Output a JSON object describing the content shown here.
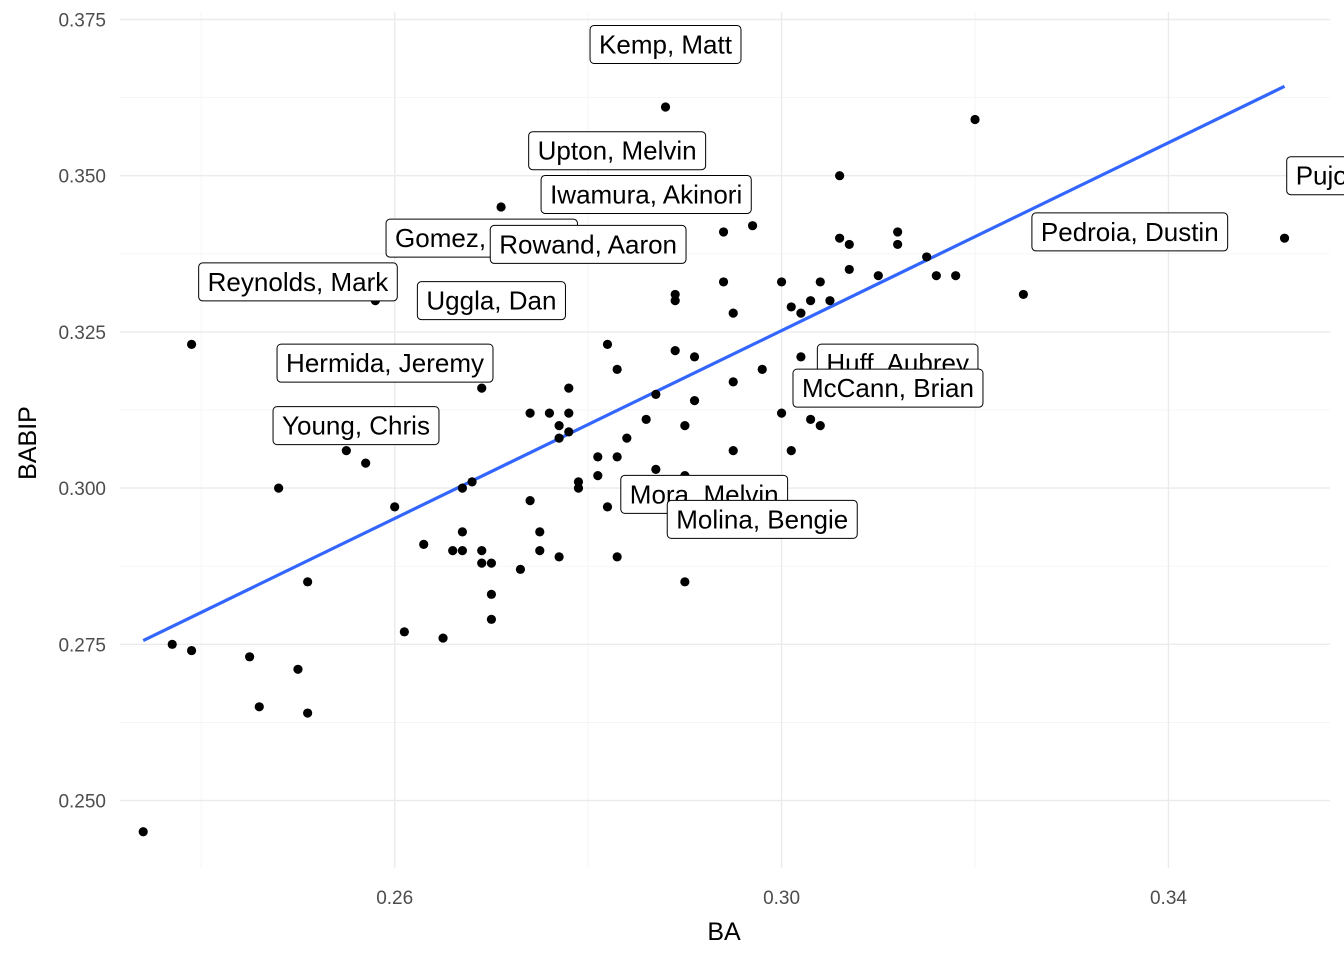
{
  "chart_data": {
    "type": "scatter",
    "title": "",
    "xlabel": "BA",
    "ylabel": "BABIP",
    "xlim": [
      0.2316,
      0.3567
    ],
    "ylim": [
      0.2392,
      0.3762
    ],
    "x_ticks": [
      0.26,
      0.3,
      0.34
    ],
    "x_tick_labels": [
      "0.26",
      "0.30",
      "0.34"
    ],
    "y_ticks": [
      0.25,
      0.275,
      0.3,
      0.325,
      0.35,
      0.375
    ],
    "y_tick_labels": [
      "0.250",
      "0.275",
      "0.300",
      "0.325",
      "0.350",
      "0.375"
    ],
    "grid": true,
    "legend": "none",
    "colors": {
      "points": "#000000",
      "fit_line": "#3366ff",
      "grid": "#ebebeb"
    },
    "points": [
      [
        0.234,
        0.245
      ],
      [
        0.237,
        0.275
      ],
      [
        0.239,
        0.274
      ],
      [
        0.239,
        0.323
      ],
      [
        0.245,
        0.273
      ],
      [
        0.246,
        0.265
      ],
      [
        0.248,
        0.3
      ],
      [
        0.25,
        0.271
      ],
      [
        0.251,
        0.264
      ],
      [
        0.251,
        0.285
      ],
      [
        0.255,
        0.306
      ],
      [
        0.257,
        0.304
      ],
      [
        0.258,
        0.33
      ],
      [
        0.26,
        0.297
      ],
      [
        0.261,
        0.277
      ],
      [
        0.263,
        0.291
      ],
      [
        0.265,
        0.276
      ],
      [
        0.266,
        0.29
      ],
      [
        0.267,
        0.29
      ],
      [
        0.267,
        0.293
      ],
      [
        0.267,
        0.3
      ],
      [
        0.268,
        0.301
      ],
      [
        0.269,
        0.29
      ],
      [
        0.269,
        0.288
      ],
      [
        0.269,
        0.316
      ],
      [
        0.27,
        0.288
      ],
      [
        0.27,
        0.283
      ],
      [
        0.27,
        0.279
      ],
      [
        0.271,
        0.345
      ],
      [
        0.273,
        0.287
      ],
      [
        0.274,
        0.298
      ],
      [
        0.274,
        0.312
      ],
      [
        0.275,
        0.293
      ],
      [
        0.275,
        0.29
      ],
      [
        0.276,
        0.312
      ],
      [
        0.277,
        0.31
      ],
      [
        0.277,
        0.308
      ],
      [
        0.277,
        0.289
      ],
      [
        0.278,
        0.309
      ],
      [
        0.278,
        0.312
      ],
      [
        0.278,
        0.316
      ],
      [
        0.279,
        0.3
      ],
      [
        0.279,
        0.301
      ],
      [
        0.281,
        0.302
      ],
      [
        0.281,
        0.305
      ],
      [
        0.282,
        0.297
      ],
      [
        0.282,
        0.323
      ],
      [
        0.283,
        0.319
      ],
      [
        0.283,
        0.305
      ],
      [
        0.283,
        0.289
      ],
      [
        0.284,
        0.308
      ],
      [
        0.286,
        0.311
      ],
      [
        0.287,
        0.315
      ],
      [
        0.287,
        0.303
      ],
      [
        0.288,
        0.361
      ],
      [
        0.289,
        0.331
      ],
      [
        0.289,
        0.33
      ],
      [
        0.289,
        0.322
      ],
      [
        0.29,
        0.302
      ],
      [
        0.29,
        0.31
      ],
      [
        0.29,
        0.285
      ],
      [
        0.291,
        0.314
      ],
      [
        0.291,
        0.321
      ],
      [
        0.294,
        0.341
      ],
      [
        0.294,
        0.333
      ],
      [
        0.295,
        0.328
      ],
      [
        0.295,
        0.317
      ],
      [
        0.295,
        0.306
      ],
      [
        0.297,
        0.342
      ],
      [
        0.298,
        0.319
      ],
      [
        0.3,
        0.333
      ],
      [
        0.3,
        0.312
      ],
      [
        0.301,
        0.329
      ],
      [
        0.301,
        0.306
      ],
      [
        0.302,
        0.328
      ],
      [
        0.302,
        0.321
      ],
      [
        0.303,
        0.33
      ],
      [
        0.303,
        0.311
      ],
      [
        0.304,
        0.333
      ],
      [
        0.304,
        0.31
      ],
      [
        0.305,
        0.33
      ],
      [
        0.306,
        0.35
      ],
      [
        0.306,
        0.34
      ],
      [
        0.307,
        0.339
      ],
      [
        0.307,
        0.335
      ],
      [
        0.31,
        0.334
      ],
      [
        0.312,
        0.341
      ],
      [
        0.312,
        0.339
      ],
      [
        0.315,
        0.337
      ],
      [
        0.316,
        0.334
      ],
      [
        0.318,
        0.334
      ],
      [
        0.32,
        0.359
      ],
      [
        0.325,
        0.331
      ],
      [
        0.352,
        0.34
      ]
    ],
    "fit_line": {
      "method": "linear",
      "x": [
        0.234,
        0.352
      ],
      "y": [
        0.2756,
        0.3643
      ]
    },
    "labels": [
      {
        "text": "Kemp, Matt",
        "x": 0.288,
        "y": 0.371
      },
      {
        "text": "Upton, Melvin",
        "x": 0.283,
        "y": 0.354
      },
      {
        "text": "Iwamura, Akinori",
        "x": 0.286,
        "y": 0.347
      },
      {
        "text": "Pujols, Albert",
        "x": 0.361,
        "y": 0.35
      },
      {
        "text": "Gomez, Carlos",
        "x": 0.269,
        "y": 0.34
      },
      {
        "text": "Rowand, Aaron",
        "x": 0.28,
        "y": 0.339
      },
      {
        "text": "Pedroia, Dustin",
        "x": 0.336,
        "y": 0.341
      },
      {
        "text": "Reynolds, Mark",
        "x": 0.25,
        "y": 0.333
      },
      {
        "text": "Uggla, Dan",
        "x": 0.27,
        "y": 0.33
      },
      {
        "text": "Hermida, Jeremy",
        "x": 0.259,
        "y": 0.32
      },
      {
        "text": "Huff, Aubrey",
        "x": 0.312,
        "y": 0.32
      },
      {
        "text": "McCann, Brian",
        "x": 0.311,
        "y": 0.316
      },
      {
        "text": "Young, Chris",
        "x": 0.256,
        "y": 0.31
      },
      {
        "text": "Mora, Melvin",
        "x": 0.292,
        "y": 0.299
      },
      {
        "text": "Molina, Bengie",
        "x": 0.298,
        "y": 0.295
      }
    ]
  }
}
